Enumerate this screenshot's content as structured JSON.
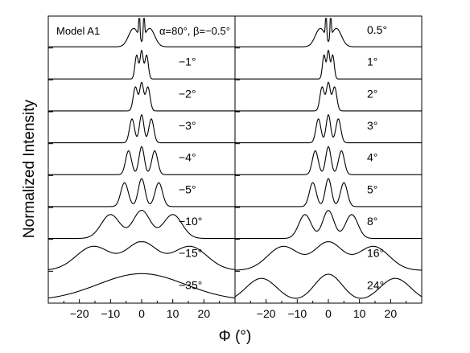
{
  "chart_data": {
    "type": "line",
    "ylabel": "Normalized Intensity",
    "xlabel": "Φ (°)",
    "xlim": [
      -30,
      30
    ],
    "xticks": [
      -20,
      -10,
      0,
      10,
      20
    ],
    "grid": false,
    "panels": [
      {
        "model_label": "Model A1",
        "params_label": "α=80°, β=−0.5°",
        "traces": [
          {
            "label": "",
            "kind": "edge",
            "d": 0.75,
            "w": 1.6
          },
          {
            "label": "−1°",
            "kind": "osc",
            "d": 1.6,
            "w": 0.55
          },
          {
            "label": "−2°",
            "kind": "osc",
            "d": 2.0,
            "w": 0.7
          },
          {
            "label": "−3°",
            "kind": "osc",
            "d": 3.1,
            "w": 0.8
          },
          {
            "label": "−4°",
            "kind": "osc",
            "d": 4.2,
            "w": 0.95
          },
          {
            "label": "−5°",
            "kind": "osc",
            "d": 5.5,
            "w": 1.2
          },
          {
            "label": "−10°",
            "kind": "osc",
            "d": 10.0,
            "w": 3.0
          },
          {
            "label": "−15°",
            "kind": "osc",
            "d": 15.5,
            "w": 5.5
          },
          {
            "label": "−35°",
            "kind": "broad",
            "d": 0,
            "w": 14
          }
        ]
      },
      {
        "model_label": "",
        "params_label": "",
        "traces": [
          {
            "label": "0.5°",
            "kind": "edge",
            "d": 0.75,
            "w": 1.6
          },
          {
            "label": "1°",
            "kind": "osc",
            "d": 1.4,
            "w": 0.5
          },
          {
            "label": "2°",
            "kind": "osc",
            "d": 2.0,
            "w": 0.7
          },
          {
            "label": "3°",
            "kind": "osc",
            "d": 3.2,
            "w": 0.8
          },
          {
            "label": "4°",
            "kind": "osc",
            "d": 4.2,
            "w": 0.95
          },
          {
            "label": "5°",
            "kind": "osc",
            "d": 5.0,
            "w": 1.1
          },
          {
            "label": "8°",
            "kind": "osc",
            "d": 7.5,
            "w": 2.0
          },
          {
            "label": "16°",
            "kind": "osc",
            "d": 14.5,
            "w": 5.0
          },
          {
            "label": "24°",
            "kind": "osc",
            "d": 21.5,
            "w": 5.0
          }
        ]
      }
    ]
  }
}
